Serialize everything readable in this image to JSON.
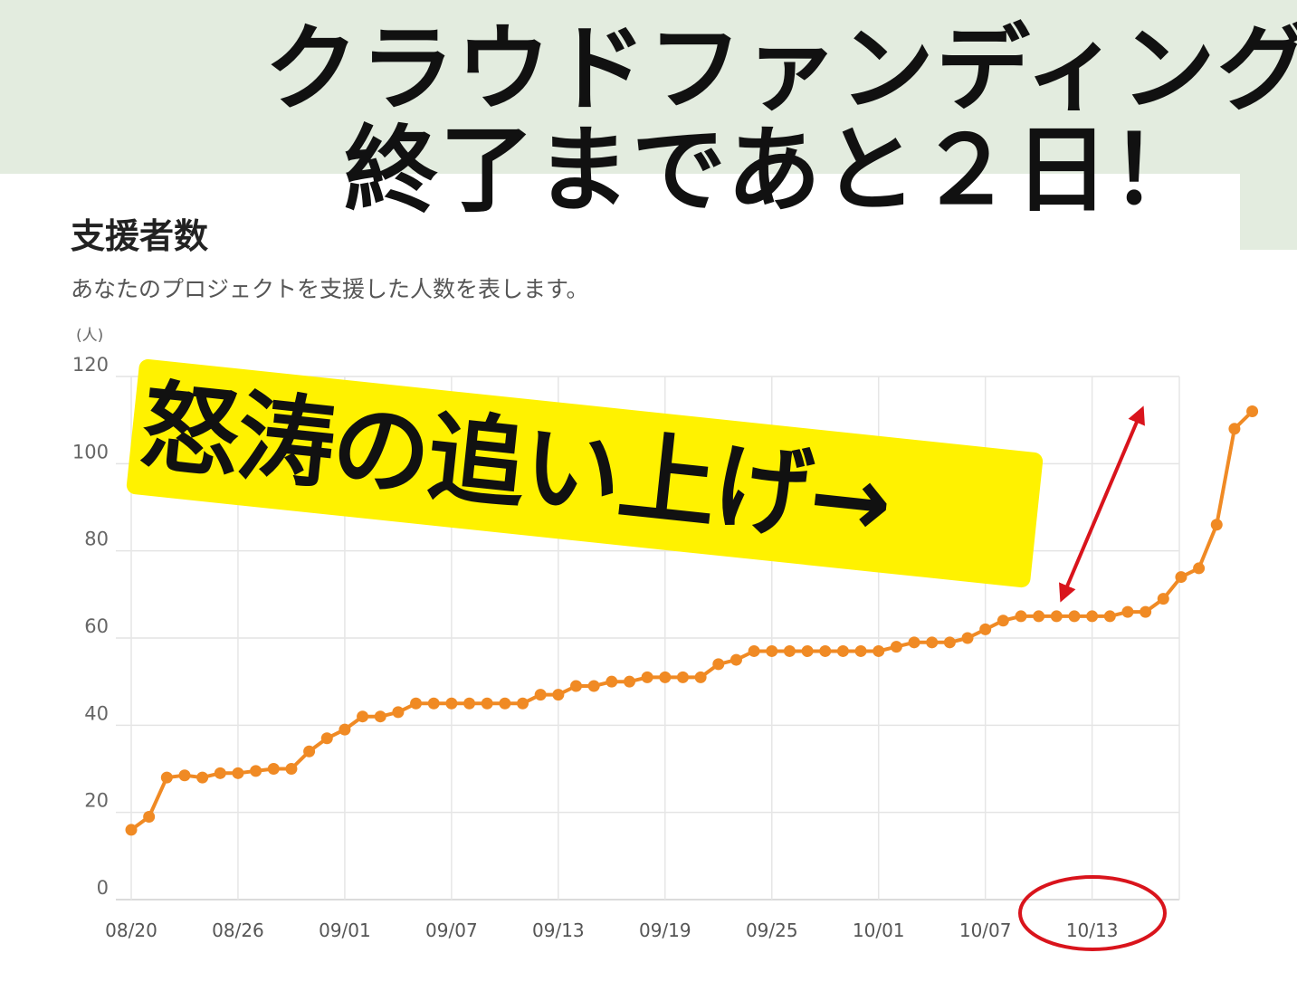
{
  "headline": {
    "line1": "クラウドファンディング",
    "line2": "終了まであと２日！"
  },
  "card": {
    "title": "支援者数",
    "description": "あなたのプロジェクトを支援した人数を表します。"
  },
  "callout": {
    "text": "怒涛の追い上げ→"
  },
  "colors": {
    "banner": "#e3ecdf",
    "line": "#f08a24",
    "highlight": "#fff200",
    "annotation": "#d9141c"
  },
  "chart_data": {
    "type": "line",
    "unit_label": "(人)",
    "ylim": [
      0,
      120
    ],
    "y_ticks": [
      0,
      20,
      40,
      60,
      80,
      100,
      120
    ],
    "x_tick_labels": [
      "08/20",
      "08/26",
      "09/01",
      "09/07",
      "09/13",
      "09/19",
      "09/25",
      "10/01",
      "10/07",
      "10/13"
    ],
    "grid": true,
    "series": [
      {
        "values": [
          16,
          19,
          28,
          28.5,
          28,
          29,
          29,
          29.5,
          30,
          30,
          34,
          37,
          39,
          42,
          42,
          43,
          45,
          45,
          45,
          45,
          45,
          45,
          45,
          47,
          47,
          49,
          49,
          50,
          50,
          51,
          51,
          51,
          51,
          54,
          55,
          57,
          57,
          57,
          57,
          57,
          57,
          57,
          57,
          58,
          59,
          59,
          59,
          60,
          62,
          64,
          65,
          65,
          65,
          65,
          65,
          65,
          66,
          66,
          69,
          74,
          76,
          86,
          108,
          112
        ]
      }
    ]
  }
}
